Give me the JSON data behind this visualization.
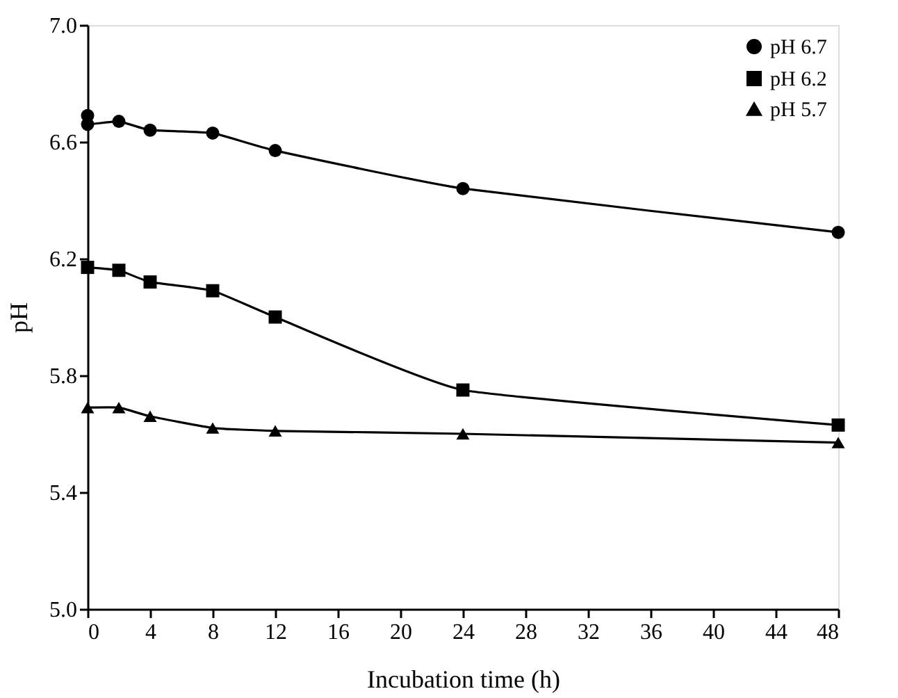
{
  "chart_data": {
    "type": "line",
    "xlabel": "Incubation time (h)",
    "ylabel": "pH",
    "xlim": [
      0,
      48
    ],
    "xticks": [
      0,
      4,
      8,
      12,
      16,
      20,
      24,
      28,
      32,
      36,
      40,
      44,
      48
    ],
    "ylim": [
      5.0,
      7.0
    ],
    "yticks": [
      {
        "value": 5.0,
        "label": "5.0"
      },
      5.4,
      5.8,
      6.2,
      6.6,
      {
        "value": 7.0,
        "label": "7.0"
      }
    ],
    "grid": false,
    "legend": "top right",
    "series": [
      {
        "name": "pH 6.7",
        "color": "#000000",
        "marker": "circle",
        "x": [
          0,
          0,
          2,
          4,
          8,
          12,
          24,
          48
        ],
        "values": [
          6.69,
          6.66,
          6.67,
          6.64,
          6.63,
          6.57,
          6.44,
          6.29
        ]
      },
      {
        "name": "pH 6.2",
        "color": "#000000",
        "marker": "square",
        "x": [
          0,
          2,
          4,
          8,
          12,
          24,
          48
        ],
        "values": [
          6.17,
          6.16,
          6.12,
          6.09,
          6.0,
          5.75,
          5.63
        ]
      },
      {
        "name": "pH 5.7",
        "color": "#000000",
        "marker": "triangle",
        "x": [
          0,
          2,
          4,
          8,
          12,
          24,
          48
        ],
        "values": [
          5.69,
          5.69,
          5.66,
          5.62,
          5.61,
          5.6,
          5.57
        ]
      }
    ]
  }
}
